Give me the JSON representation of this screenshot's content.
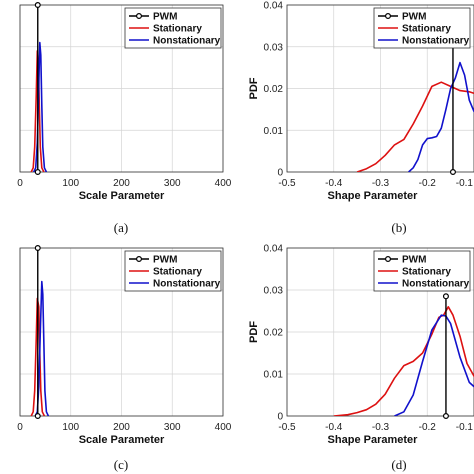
{
  "chart_data": [
    {
      "type": "line",
      "panel": "(a)",
      "xlabel": "Scale Parameter",
      "ylabel": "",
      "xlim": [
        0,
        400
      ],
      "ylim": [
        0,
        0.04
      ],
      "x_ticks": [
        "0",
        "100",
        "200",
        "300",
        "400"
      ],
      "y_ticks": [],
      "legend": {
        "placement": "top-right",
        "entries": [
          "PWM",
          "Stationary",
          "Nonstationary"
        ]
      },
      "grid": true,
      "pwm_stem": {
        "x": 35,
        "y": 0.04
      },
      "series": [
        {
          "name": "PWM",
          "color": "#000000",
          "x": [
            35,
            35
          ],
          "y": [
            0,
            0.04
          ]
        },
        {
          "name": "Stationary",
          "color": "#dd1111",
          "x": [
            22,
            26,
            29,
            32,
            34,
            36,
            38,
            40,
            43,
            47
          ],
          "y": [
            0,
            0.001,
            0.006,
            0.018,
            0.029,
            0.027,
            0.016,
            0.006,
            0.001,
            0
          ]
        },
        {
          "name": "Nonstationary",
          "color": "#1111cc",
          "x": [
            27,
            31,
            34,
            37,
            39,
            41,
            43,
            45,
            48,
            52
          ],
          "y": [
            0,
            0.001,
            0.007,
            0.021,
            0.031,
            0.028,
            0.016,
            0.006,
            0.001,
            0
          ]
        }
      ]
    },
    {
      "type": "line",
      "panel": "(b)",
      "xlabel": "Shape Parameter",
      "ylabel": "PDF",
      "xlim": [
        -0.5,
        -0.1
      ],
      "ylim": [
        0,
        0.04
      ],
      "x_ticks": [
        "-0.5",
        "-0.4",
        "-0.3",
        "-0.2",
        "-0.1"
      ],
      "y_ticks": [
        "0",
        "0.01",
        "0.02",
        "0.03",
        "0.04"
      ],
      "legend": {
        "placement": "top-right",
        "entries": [
          "PWM",
          "Stationary",
          "Nonstationary"
        ]
      },
      "grid": true,
      "pwm_stem": {
        "x": -0.145,
        "y": 0.0313
      },
      "series": [
        {
          "name": "PWM",
          "color": "#000000",
          "x": [
            -0.145,
            -0.145
          ],
          "y": [
            0,
            0.0313
          ]
        },
        {
          "name": "Stationary",
          "color": "#dd1111",
          "x": [
            -0.35,
            -0.33,
            -0.31,
            -0.29,
            -0.27,
            -0.25,
            -0.23,
            -0.21,
            -0.19,
            -0.17,
            -0.15,
            -0.13,
            -0.11,
            -0.09
          ],
          "y": [
            0,
            0.0008,
            0.002,
            0.004,
            0.0065,
            0.0078,
            0.0115,
            0.0158,
            0.0205,
            0.0215,
            0.0205,
            0.0195,
            0.0192,
            0.0185
          ]
        },
        {
          "name": "Nonstationary",
          "color": "#1111cc",
          "x": [
            -0.24,
            -0.23,
            -0.22,
            -0.21,
            -0.2,
            -0.19,
            -0.18,
            -0.17,
            -0.16,
            -0.15,
            -0.14,
            -0.13,
            -0.12,
            -0.11,
            -0.1,
            -0.095
          ],
          "y": [
            0,
            0.001,
            0.003,
            0.0065,
            0.008,
            0.0082,
            0.0085,
            0.0105,
            0.015,
            0.02,
            0.0225,
            0.0262,
            0.0232,
            0.0172,
            0.0145,
            0.0155
          ]
        }
      ]
    },
    {
      "type": "line",
      "panel": "(c)",
      "xlabel": "Scale Parameter",
      "ylabel": "",
      "xlim": [
        0,
        400
      ],
      "ylim": [
        0,
        0.04
      ],
      "x_ticks": [
        "0",
        "100",
        "200",
        "300",
        "400"
      ],
      "y_ticks": [],
      "legend": {
        "placement": "top-right",
        "entries": [
          "PWM",
          "Stationary",
          "Nonstationary"
        ]
      },
      "grid": true,
      "pwm_stem": {
        "x": 35,
        "y": 0.04
      },
      "series": [
        {
          "name": "PWM",
          "color": "#000000",
          "x": [
            35,
            35
          ],
          "y": [
            0,
            0.04
          ]
        },
        {
          "name": "Stationary",
          "color": "#dd1111",
          "x": [
            22,
            26,
            29,
            32,
            34,
            37,
            39,
            41,
            44,
            48
          ],
          "y": [
            0,
            0.001,
            0.006,
            0.018,
            0.028,
            0.026,
            0.015,
            0.006,
            0.001,
            0
          ]
        },
        {
          "name": "Nonstationary",
          "color": "#1111cc",
          "x": [
            30,
            34,
            37,
            40,
            43,
            45,
            47,
            49,
            52,
            56
          ],
          "y": [
            0,
            0.001,
            0.007,
            0.02,
            0.032,
            0.029,
            0.017,
            0.006,
            0.001,
            0
          ]
        }
      ]
    },
    {
      "type": "line",
      "panel": "(d)",
      "xlabel": "Shape Parameter",
      "ylabel": "PDF",
      "xlim": [
        -0.5,
        -0.1
      ],
      "ylim": [
        0,
        0.04
      ],
      "x_ticks": [
        "-0.5",
        "-0.4",
        "-0.3",
        "-0.2",
        "-0.1"
      ],
      "y_ticks": [
        "0",
        "0.01",
        "0.02",
        "0.03",
        "0.04"
      ],
      "legend": {
        "placement": "top-right",
        "entries": [
          "PWM",
          "Stationary",
          "Nonstationary"
        ]
      },
      "grid": true,
      "pwm_stem": {
        "x": -0.16,
        "y": 0.0285
      },
      "series": [
        {
          "name": "PWM",
          "color": "#000000",
          "x": [
            -0.16,
            -0.16
          ],
          "y": [
            0,
            0.0285
          ]
        },
        {
          "name": "Stationary",
          "color": "#dd1111",
          "x": [
            -0.4,
            -0.37,
            -0.35,
            -0.33,
            -0.31,
            -0.29,
            -0.27,
            -0.25,
            -0.23,
            -0.21,
            -0.19,
            -0.175,
            -0.165,
            -0.155,
            -0.145,
            -0.13,
            -0.115,
            -0.1,
            -0.09
          ],
          "y": [
            0,
            0.0003,
            0.0008,
            0.0015,
            0.0028,
            0.0052,
            0.009,
            0.012,
            0.013,
            0.015,
            0.0195,
            0.0235,
            0.024,
            0.026,
            0.024,
            0.019,
            0.0125,
            0.0095,
            0.008
          ]
        },
        {
          "name": "Nonstationary",
          "color": "#1111cc",
          "x": [
            -0.27,
            -0.25,
            -0.23,
            -0.21,
            -0.19,
            -0.17,
            -0.16,
            -0.15,
            -0.13,
            -0.11,
            -0.1,
            -0.09
          ],
          "y": [
            0,
            0.001,
            0.005,
            0.013,
            0.0205,
            0.024,
            0.0238,
            0.022,
            0.014,
            0.008,
            0.007,
            0.0065
          ]
        }
      ]
    }
  ],
  "captions": [
    "(a)",
    "(b)",
    "(c)",
    "(d)"
  ],
  "colors": {
    "pwm": "#000000",
    "stationary": "#dd1111",
    "nonstationary": "#1111cc",
    "grid": "#d4d4d4",
    "axis": "#333333"
  }
}
